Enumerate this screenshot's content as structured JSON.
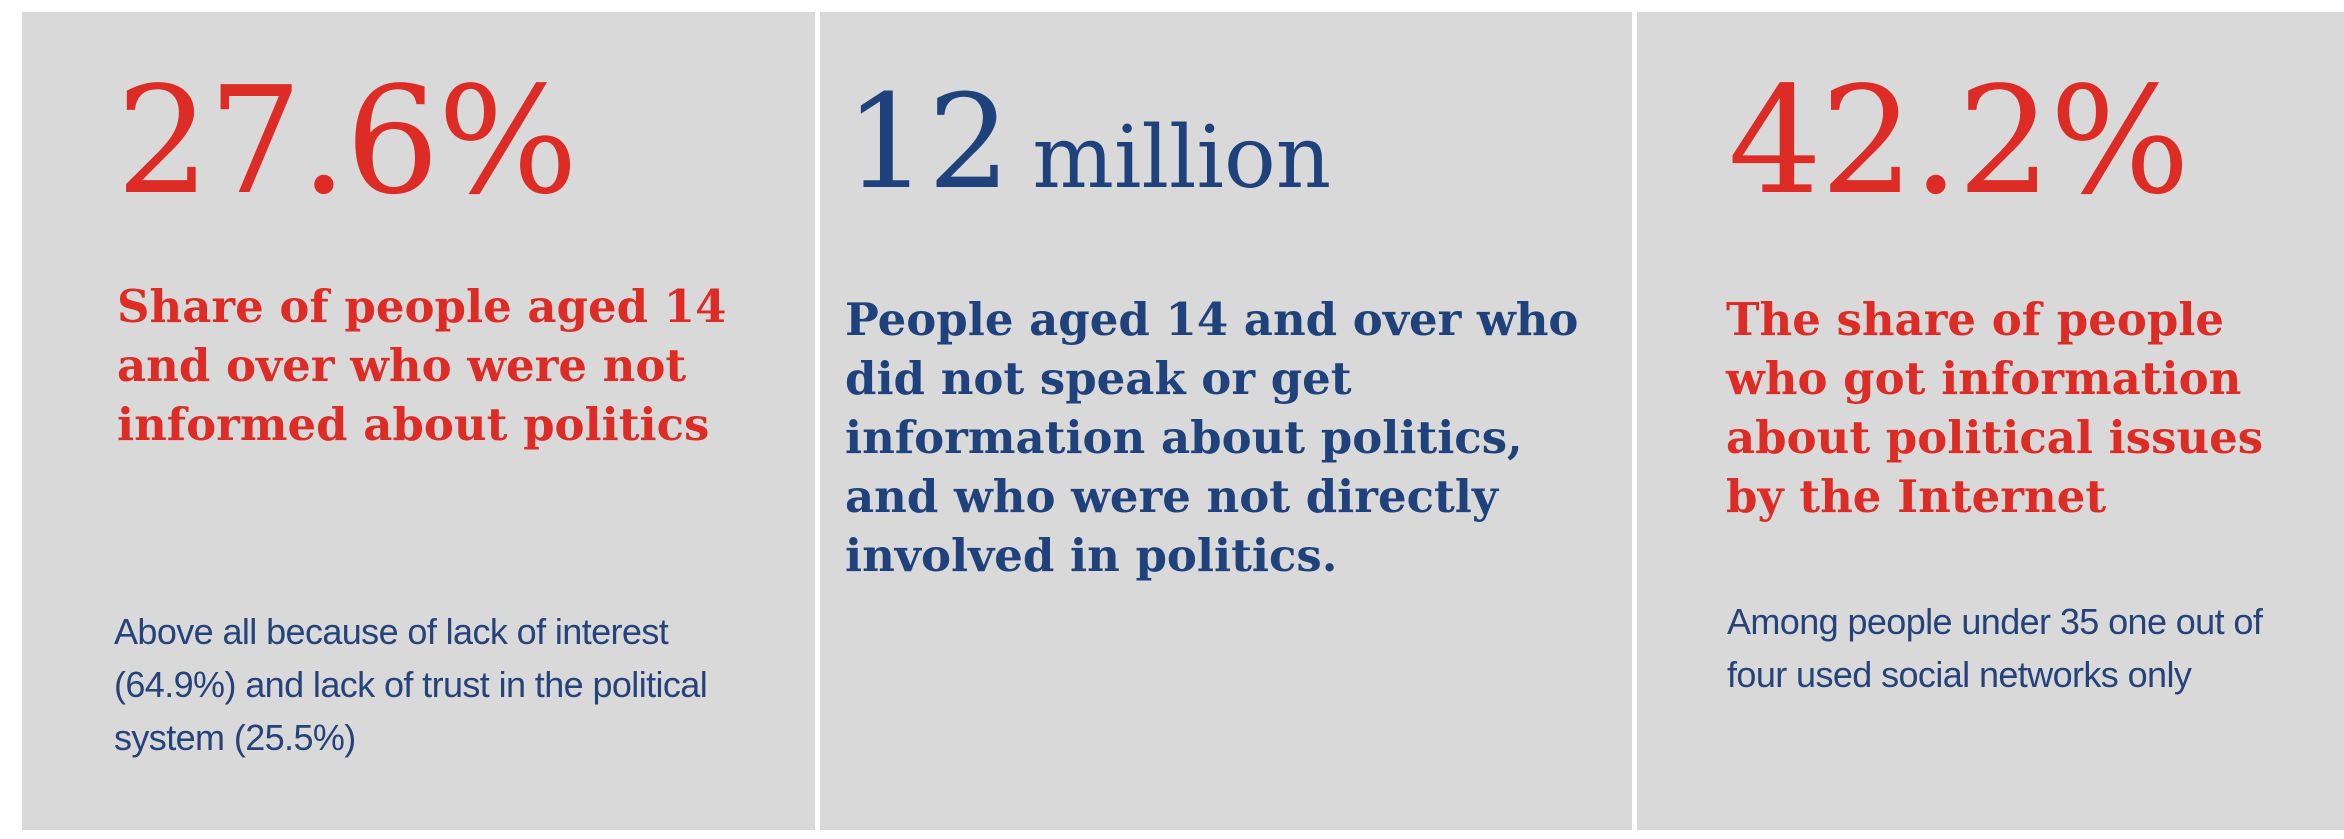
{
  "stats": [
    {
      "value": "27.6%",
      "description": "Share of people aged 14 and over who were not informed about politics",
      "note": "Above all because of lack of interest (64.9%) and lack of trust in the political system (25.5%)",
      "color": "#dd2c26"
    },
    {
      "value": "12",
      "unit": "million",
      "description": "People aged 14 and over who did not speak or get information about politics, and who were not directly involved in politics.",
      "color": "#20427c"
    },
    {
      "value": "42.2%",
      "description": "The share of people who got information about political issues by the Internet",
      "note": "Among people under 35 one out of four used social networks only",
      "color": "#dd2c26"
    }
  ],
  "colors": {
    "panel_background": "#d9d9d9",
    "divider": "#ffffff",
    "note_text": "#25437a"
  }
}
